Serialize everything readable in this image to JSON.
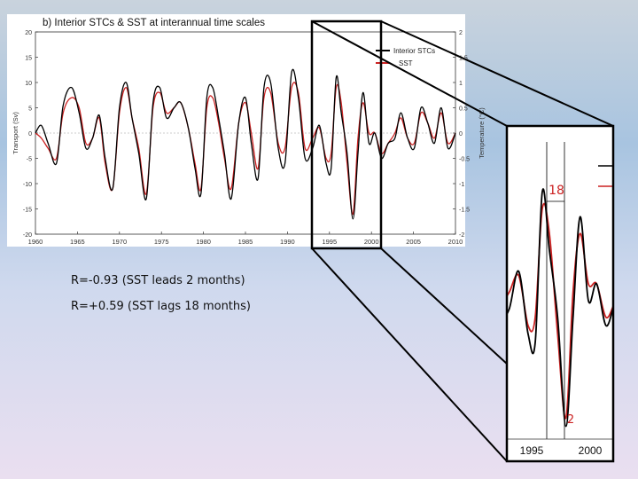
{
  "chart_data": {
    "type": "line",
    "title": "b) Interior STCs & SST at interannual time scales",
    "ylabel_left": "Transport (Sv)",
    "ylabel_right": "Temperature (°C)",
    "x_ticks": [
      "1960",
      "1965",
      "1970",
      "1975",
      "1980",
      "1985",
      "1990",
      "1995",
      "2000",
      "2005",
      "2010"
    ],
    "xlim": [
      1960,
      2010
    ],
    "y_left_ticks": [
      "20",
      "15",
      "10",
      "5",
      "0",
      "-5",
      "-10",
      "-15",
      "-20"
    ],
    "y_left_lim": [
      -20,
      20
    ],
    "y_right_ticks": [
      "2",
      "1.5",
      "1",
      "0.5",
      "0",
      "-0.5",
      "-1",
      "-1.5",
      "-2"
    ],
    "y_right_lim": [
      -2,
      2
    ],
    "legend": {
      "placement": "top-right",
      "entries": [
        {
          "name": "Interior STCs",
          "color": "#000000"
        },
        {
          "name": "SST",
          "color": "#cc2222"
        }
      ]
    },
    "series": [
      {
        "name": "Interior STCs",
        "color": "#000000",
        "x": [
          1960,
          1960.7,
          1961.5,
          1962.5,
          1963.3,
          1964.3,
          1965.2,
          1966,
          1966.8,
          1967.6,
          1968.3,
          1969.2,
          1970,
          1970.8,
          1971.5,
          1972.3,
          1973.2,
          1974,
          1974.8,
          1975.6,
          1976.5,
          1977.3,
          1978.2,
          1979,
          1979.7,
          1980.4,
          1981.1,
          1981.8,
          1982.5,
          1983.3,
          1984.2,
          1985,
          1985.7,
          1986.5,
          1987.2,
          1988,
          1988.9,
          1989.7,
          1990.5,
          1991.3,
          1992.1,
          1993,
          1993.8,
          1994.6,
          1995.2,
          1995.8,
          1996.4,
          1997.1,
          1997.8,
          1998.4,
          1999,
          1999.7,
          2000.4,
          2001.2,
          2002,
          2002.8,
          2003.5,
          2004.3,
          2005.1,
          2005.9,
          2006.7,
          2007.5,
          2008.3,
          2009.1,
          2010
        ],
        "y": [
          0,
          1.5,
          -2,
          -6,
          5.5,
          9,
          4,
          -3,
          -1,
          3.5,
          -5,
          -11,
          5,
          10,
          3,
          -4,
          -13,
          6,
          9,
          3,
          5,
          6,
          1,
          -7,
          -12,
          7,
          9,
          3,
          -4,
          -13,
          2,
          7,
          -2,
          -9,
          9,
          10,
          -3,
          -6,
          12,
          7,
          -5,
          -3,
          1.5,
          -6,
          -7,
          11,
          4,
          -4,
          -17,
          -4,
          8,
          -2,
          0,
          -5,
          -2,
          -1,
          4,
          -1,
          -3,
          5,
          2,
          -2,
          5,
          -3,
          0
        ]
      },
      {
        "name": "SST",
        "color": "#cc2222",
        "x": [
          1960,
          1960.7,
          1961.5,
          1962.5,
          1963.3,
          1964.3,
          1965.2,
          1966,
          1966.8,
          1967.6,
          1968.3,
          1969.2,
          1970,
          1970.8,
          1971.5,
          1972.3,
          1973.2,
          1974,
          1974.8,
          1975.6,
          1976.5,
          1977.3,
          1978.2,
          1979,
          1979.7,
          1980.4,
          1981.1,
          1981.8,
          1982.5,
          1983.3,
          1984.2,
          1985,
          1985.7,
          1986.5,
          1987.2,
          1988,
          1988.9,
          1989.7,
          1990.5,
          1991.3,
          1992.1,
          1993,
          1993.8,
          1994.6,
          1995.2,
          1995.8,
          1996.4,
          1997.1,
          1997.8,
          1998.4,
          1999,
          1999.7,
          2000.4,
          2001.2,
          2002,
          2002.8,
          2003.5,
          2004.3,
          2005.1,
          2005.9,
          2006.7,
          2007.5,
          2008.3,
          2009.1,
          2010
        ],
        "y": [
          0,
          -0.1,
          -0.3,
          -0.5,
          0.4,
          0.7,
          0.5,
          -0.2,
          -0.1,
          0.3,
          -0.6,
          -1.1,
          0.4,
          0.9,
          0.3,
          -0.3,
          -1.2,
          0.5,
          0.8,
          0.4,
          0.5,
          0.6,
          0.1,
          -0.6,
          -1.1,
          0.5,
          0.7,
          0.2,
          -0.5,
          -1.1,
          0.2,
          0.6,
          0,
          -0.7,
          0.7,
          0.8,
          -0.2,
          -0.3,
          0.9,
          0.8,
          -0.3,
          -0.1,
          0.1,
          -0.5,
          -0.4,
          0.9,
          0.6,
          -0.6,
          -1.6,
          -0.1,
          0.6,
          0,
          0,
          -0.4,
          -0.2,
          0,
          0.3,
          -0.1,
          -0.2,
          0.4,
          0.2,
          -0.1,
          0.4,
          -0.2,
          0
        ]
      }
    ]
  },
  "inset": {
    "x_ticks": [
      "1995",
      "2000"
    ],
    "lag_label_top": "18",
    "lag_label_bottom": "2"
  },
  "notes": {
    "line1": "R=-0.93 (SST leads 2 months)",
    "line2": "R=+0.59 (SST lags 18 months)"
  }
}
